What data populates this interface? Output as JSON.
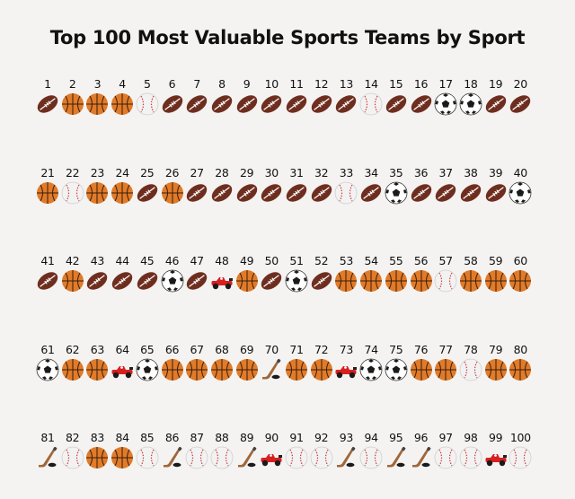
{
  "title": "Top 100 Most Valuable Sports Teams by Sport",
  "chart_data": {
    "type": "pictogram",
    "title": "Top 100 Most Valuable Sports Teams by Sport",
    "ranks": [
      1,
      2,
      3,
      4,
      5,
      6,
      7,
      8,
      9,
      10,
      11,
      12,
      13,
      14,
      15,
      16,
      17,
      18,
      19,
      20,
      21,
      22,
      23,
      24,
      25,
      26,
      27,
      28,
      29,
      30,
      31,
      32,
      33,
      34,
      35,
      36,
      37,
      38,
      39,
      40,
      41,
      42,
      43,
      44,
      45,
      46,
      47,
      48,
      49,
      50,
      51,
      52,
      53,
      54,
      55,
      56,
      57,
      58,
      59,
      60,
      61,
      62,
      63,
      64,
      65,
      66,
      67,
      68,
      69,
      70,
      71,
      72,
      73,
      74,
      75,
      76,
      77,
      78,
      79,
      80,
      81,
      82,
      83,
      84,
      85,
      86,
      87,
      88,
      89,
      90,
      91,
      92,
      93,
      94,
      95,
      96,
      97,
      98,
      99,
      100
    ],
    "sports": [
      "football",
      "basketball",
      "basketball",
      "basketball",
      "baseball",
      "football",
      "football",
      "football",
      "football",
      "football",
      "football",
      "football",
      "football",
      "baseball",
      "football",
      "football",
      "soccer",
      "soccer",
      "football",
      "football",
      "basketball",
      "baseball",
      "basketball",
      "basketball",
      "football",
      "basketball",
      "football",
      "football",
      "football",
      "football",
      "football",
      "football",
      "baseball",
      "football",
      "soccer",
      "football",
      "football",
      "football",
      "football",
      "soccer",
      "football",
      "basketball",
      "football",
      "football",
      "football",
      "soccer",
      "football",
      "f1",
      "basketball",
      "football",
      "soccer",
      "football",
      "basketball",
      "basketball",
      "basketball",
      "basketball",
      "baseball",
      "basketball",
      "basketball",
      "basketball",
      "soccer",
      "basketball",
      "basketball",
      "f1",
      "soccer",
      "basketball",
      "basketball",
      "basketball",
      "basketball",
      "hockey",
      "basketball",
      "basketball",
      "f1",
      "soccer",
      "soccer",
      "basketball",
      "basketball",
      "baseball",
      "basketball",
      "basketball",
      "hockey",
      "baseball",
      "basketball",
      "basketball",
      "baseball",
      "hockey",
      "baseball",
      "baseball",
      "hockey",
      "f1",
      "baseball",
      "baseball",
      "hockey",
      "baseball",
      "hockey",
      "hockey",
      "baseball",
      "baseball",
      "f1",
      "baseball"
    ],
    "colors": {
      "football": "#6e2e1f",
      "basketball": "#e07b2a",
      "baseball": "#f2f2f2",
      "soccer": "#ffffff",
      "hockey": "#a0673a",
      "f1": "#d82020"
    }
  }
}
